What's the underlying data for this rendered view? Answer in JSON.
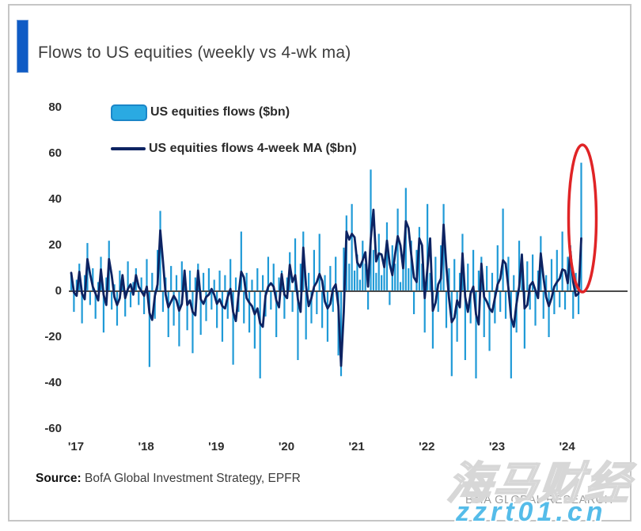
{
  "title": "Flows to US equities (weekly vs 4-wk ma)",
  "legend": {
    "bar_label": "US equities flows ($bn)",
    "line_label": "US equities flows 4-week MA ($bn)"
  },
  "colors": {
    "bar": "#1f9ad7",
    "legend_swatch": "#2aaae2",
    "ma_line": "#0d2362",
    "accent_bar": "#0f5bc5",
    "highlight_ellipse": "#e02426",
    "zero_line": "#4a4a4a",
    "watermark_url": "#55bce9"
  },
  "source": {
    "label": "Source:",
    "text": " BofA Global Investment Strategy, EPFR"
  },
  "watermarks": {
    "brand": "BofA GLOBAL RESEARCH",
    "overlay_cjk": "海马财经",
    "overlay_url": "zzrt01.cn"
  },
  "chart_data": {
    "type": "bar",
    "title": "Flows to US equities (weekly vs 4-wk ma)",
    "xlabel": "",
    "ylabel": "",
    "ylim": [
      -60,
      80
    ],
    "y_ticks": [
      80,
      60,
      40,
      20,
      0,
      -20,
      -40,
      -60
    ],
    "x_tick_labels": [
      "'17",
      "'18",
      "'19",
      "'20",
      "'21",
      "'22",
      "'23",
      "'24"
    ],
    "grid": false,
    "legend_position": "top-left",
    "points_per_year": 26,
    "sampling_note": "weekly flows 2017 - early 2024 digitized at ~biweekly resolution, $bn",
    "series": [
      {
        "name": "US equities flows ($bn)",
        "type": "bar",
        "color": "#1f9ad7",
        "values": [
          8,
          -9,
          5,
          12,
          -14,
          7,
          21,
          -6,
          10,
          -12,
          4,
          15,
          -18,
          6,
          22,
          -8,
          3,
          -15,
          9,
          5,
          -11,
          13,
          -7,
          4,
          10,
          -6,
          6,
          -10,
          14,
          -33,
          8,
          -12,
          18,
          35,
          -9,
          6,
          -20,
          11,
          -15,
          7,
          -24,
          13,
          5,
          -17,
          9,
          -27,
          6,
          12,
          -19,
          8,
          -13,
          10,
          -8,
          5,
          -16,
          9,
          -22,
          7,
          -12,
          14,
          -32,
          6,
          -9,
          26,
          -14,
          8,
          -18,
          5,
          -25,
          10,
          -38,
          7,
          -11,
          15,
          -8,
          12,
          -20,
          6,
          9,
          -12,
          6,
          17,
          -9,
          23,
          -30,
          12,
          26,
          -21,
          8,
          -14,
          18,
          -10,
          25,
          -16,
          7,
          -22,
          11,
          -9,
          15,
          -28,
          -37,
          19,
          33,
          12,
          38,
          9,
          16,
          5,
          22,
          12,
          -8,
          53,
          18,
          8,
          25,
          7,
          14,
          30,
          -6,
          20,
          12,
          36,
          4,
          16,
          45,
          10,
          22,
          -10,
          18,
          28,
          12,
          -18,
          38,
          8,
          -25,
          15,
          -9,
          20,
          38,
          -16,
          10,
          -37,
          14,
          -22,
          8,
          25,
          -30,
          12,
          -14,
          18,
          -38,
          9,
          15,
          -20,
          11,
          -26,
          8,
          -14,
          20,
          -9,
          36,
          -12,
          15,
          -38,
          7,
          -18,
          22,
          10,
          -25,
          13,
          -8,
          16,
          -15,
          9,
          24,
          -12,
          7,
          -20,
          14,
          -10,
          18,
          -7,
          26,
          -8,
          15,
          20,
          -12,
          8,
          -10,
          56
        ]
      },
      {
        "name": "US equities flows 4-week MA ($bn)",
        "type": "line",
        "color": "#0d2362",
        "derived": "4-week trailing moving average of the weekly flows series"
      }
    ],
    "annotation": {
      "shape": "red ellipse",
      "highlights": "latest weekly inflow spike",
      "latest_bar_value_bn": 56,
      "latest_ma_value_bn": 22
    }
  }
}
